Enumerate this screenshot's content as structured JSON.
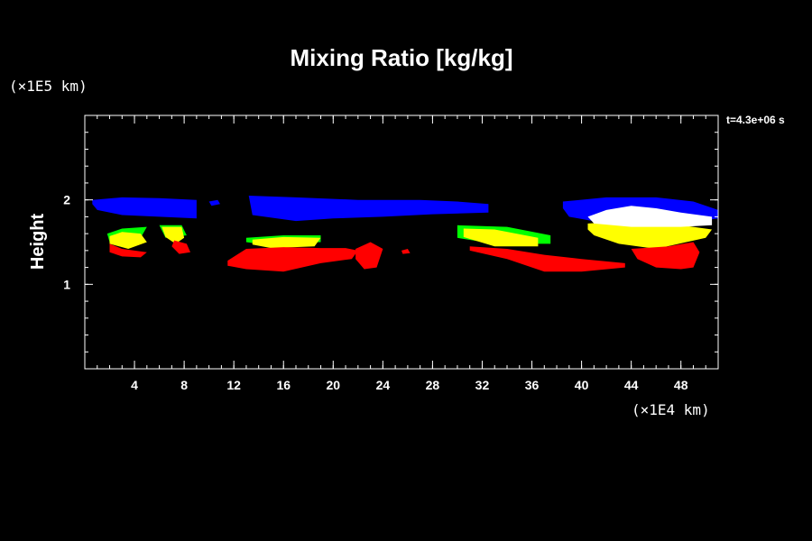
{
  "chart_data": {
    "type": "heatmap",
    "title": "Mixing Ratio [kg/kg]",
    "ylabel": "Height",
    "y_unit": "(×1E5 km)",
    "x_unit": "(×1E4 km)",
    "time_label": "t=4.3e+06 s",
    "xlim": [
      0,
      51
    ],
    "ylim": [
      0,
      3
    ],
    "x_ticks": [
      "4",
      "8",
      "12",
      "16",
      "20",
      "24",
      "28",
      "32",
      "36",
      "40",
      "44",
      "48"
    ],
    "y_ticks": [
      "1",
      "2"
    ],
    "x_tick_values": [
      4,
      8,
      12,
      16,
      20,
      24,
      28,
      32,
      36,
      40,
      44,
      48
    ],
    "y_tick_values": [
      1,
      2
    ],
    "level_colors": [
      "#ff0000",
      "#00ff00",
      "#ffff00",
      "#ffffff",
      "#0000ff"
    ],
    "regions": [
      {
        "color": "#0000ff",
        "points": [
          [
            0.6,
            2.0
          ],
          [
            3,
            2.03
          ],
          [
            6,
            2.02
          ],
          [
            9,
            2.0
          ],
          [
            9,
            1.78
          ],
          [
            6,
            1.8
          ],
          [
            3,
            1.82
          ],
          [
            1,
            1.88
          ],
          [
            0.6,
            1.95
          ]
        ]
      },
      {
        "color": "#0000ff",
        "points": [
          [
            13.2,
            2.05
          ],
          [
            17,
            2.03
          ],
          [
            22,
            2.0
          ],
          [
            27,
            2.0
          ],
          [
            30,
            1.98
          ],
          [
            32.5,
            1.95
          ],
          [
            32.5,
            1.85
          ],
          [
            28,
            1.83
          ],
          [
            24,
            1.8
          ],
          [
            20,
            1.78
          ],
          [
            17,
            1.75
          ],
          [
            13.5,
            1.82
          ]
        ]
      },
      {
        "color": "#0000ff",
        "points": [
          [
            38.5,
            1.98
          ],
          [
            42,
            2.03
          ],
          [
            46,
            2.03
          ],
          [
            49,
            1.98
          ],
          [
            51,
            1.88
          ],
          [
            51,
            1.78
          ],
          [
            49,
            1.74
          ],
          [
            42,
            1.72
          ],
          [
            39,
            1.8
          ],
          [
            38.5,
            1.9
          ]
        ]
      },
      {
        "color": "#0000ff",
        "points": [
          [
            10,
            1.98
          ],
          [
            10.7,
            2.0
          ],
          [
            10.9,
            1.95
          ],
          [
            10.2,
            1.93
          ]
        ]
      },
      {
        "color": "#00ff00",
        "points": [
          [
            1.8,
            1.6
          ],
          [
            3,
            1.66
          ],
          [
            5,
            1.68
          ],
          [
            4.5,
            1.55
          ],
          [
            2,
            1.5
          ]
        ]
      },
      {
        "color": "#00ff00",
        "points": [
          [
            6,
            1.7
          ],
          [
            7.8,
            1.7
          ],
          [
            8.2,
            1.58
          ],
          [
            6.5,
            1.55
          ]
        ]
      },
      {
        "color": "#00ff00",
        "points": [
          [
            13,
            1.55
          ],
          [
            16,
            1.58
          ],
          [
            19,
            1.58
          ],
          [
            19,
            1.5
          ],
          [
            14,
            1.48
          ],
          [
            13,
            1.5
          ]
        ]
      },
      {
        "color": "#00ff00",
        "points": [
          [
            30,
            1.7
          ],
          [
            34,
            1.68
          ],
          [
            37.5,
            1.58
          ],
          [
            37.5,
            1.48
          ],
          [
            33,
            1.48
          ],
          [
            30,
            1.55
          ]
        ]
      },
      {
        "color": "#ffff00",
        "points": [
          [
            2,
            1.57
          ],
          [
            3,
            1.62
          ],
          [
            4.5,
            1.6
          ],
          [
            5,
            1.5
          ],
          [
            3.5,
            1.42
          ],
          [
            2,
            1.48
          ]
        ]
      },
      {
        "color": "#ffff00",
        "points": [
          [
            6.2,
            1.68
          ],
          [
            7.8,
            1.68
          ],
          [
            8,
            1.55
          ],
          [
            7.3,
            1.48
          ],
          [
            6.5,
            1.56
          ]
        ]
      },
      {
        "color": "#ffff00",
        "points": [
          [
            13.5,
            1.53
          ],
          [
            16,
            1.56
          ],
          [
            19,
            1.55
          ],
          [
            18.5,
            1.45
          ],
          [
            15,
            1.43
          ],
          [
            13.5,
            1.47
          ]
        ]
      },
      {
        "color": "#ffff00",
        "points": [
          [
            30.5,
            1.66
          ],
          [
            33,
            1.65
          ],
          [
            36.5,
            1.55
          ],
          [
            36.5,
            1.45
          ],
          [
            33,
            1.45
          ],
          [
            30.5,
            1.56
          ]
        ]
      },
      {
        "color": "#ffff00",
        "points": [
          [
            40.5,
            1.72
          ],
          [
            44,
            1.75
          ],
          [
            48,
            1.7
          ],
          [
            50.5,
            1.65
          ],
          [
            50,
            1.55
          ],
          [
            46,
            1.42
          ],
          [
            43,
            1.48
          ],
          [
            41,
            1.58
          ],
          [
            40.5,
            1.65
          ]
        ]
      },
      {
        "color": "#ffffff",
        "points": [
          [
            40.5,
            1.8
          ],
          [
            42,
            1.88
          ],
          [
            44,
            1.93
          ],
          [
            46,
            1.9
          ],
          [
            48,
            1.85
          ],
          [
            50.5,
            1.8
          ],
          [
            50.5,
            1.7
          ],
          [
            48,
            1.68
          ],
          [
            44,
            1.68
          ],
          [
            41,
            1.72
          ]
        ]
      },
      {
        "color": "#ff0000",
        "points": [
          [
            2,
            1.48
          ],
          [
            3,
            1.42
          ],
          [
            5,
            1.38
          ],
          [
            4.5,
            1.32
          ],
          [
            3,
            1.33
          ],
          [
            2,
            1.38
          ]
        ]
      },
      {
        "color": "#ff0000",
        "points": [
          [
            7.2,
            1.52
          ],
          [
            8.2,
            1.48
          ],
          [
            8.5,
            1.38
          ],
          [
            7.6,
            1.36
          ],
          [
            7,
            1.45
          ]
        ]
      },
      {
        "color": "#ff0000",
        "points": [
          [
            11.5,
            1.28
          ],
          [
            13,
            1.42
          ],
          [
            16,
            1.44
          ],
          [
            19,
            1.43
          ],
          [
            21,
            1.43
          ],
          [
            22,
            1.4
          ],
          [
            21.5,
            1.3
          ],
          [
            19,
            1.25
          ],
          [
            16,
            1.15
          ],
          [
            13,
            1.18
          ],
          [
            11.5,
            1.22
          ]
        ]
      },
      {
        "color": "#ff0000",
        "points": [
          [
            21.8,
            1.42
          ],
          [
            23,
            1.5
          ],
          [
            24,
            1.42
          ],
          [
            23.5,
            1.2
          ],
          [
            22.5,
            1.18
          ],
          [
            21.8,
            1.3
          ]
        ]
      },
      {
        "color": "#ff0000",
        "points": [
          [
            31,
            1.45
          ],
          [
            34,
            1.42
          ],
          [
            37,
            1.35
          ],
          [
            40,
            1.3
          ],
          [
            43.5,
            1.25
          ],
          [
            43.5,
            1.2
          ],
          [
            40,
            1.15
          ],
          [
            37,
            1.15
          ],
          [
            34,
            1.3
          ],
          [
            31,
            1.4
          ]
        ]
      },
      {
        "color": "#ff0000",
        "points": [
          [
            44,
            1.42
          ],
          [
            47,
            1.45
          ],
          [
            49,
            1.5
          ],
          [
            49.5,
            1.38
          ],
          [
            49,
            1.2
          ],
          [
            48,
            1.18
          ],
          [
            46,
            1.2
          ],
          [
            44.5,
            1.3
          ]
        ]
      },
      {
        "color": "#ff0000",
        "points": [
          [
            25.5,
            1.4
          ],
          [
            26,
            1.42
          ],
          [
            26.2,
            1.37
          ],
          [
            25.6,
            1.36
          ]
        ]
      }
    ]
  }
}
